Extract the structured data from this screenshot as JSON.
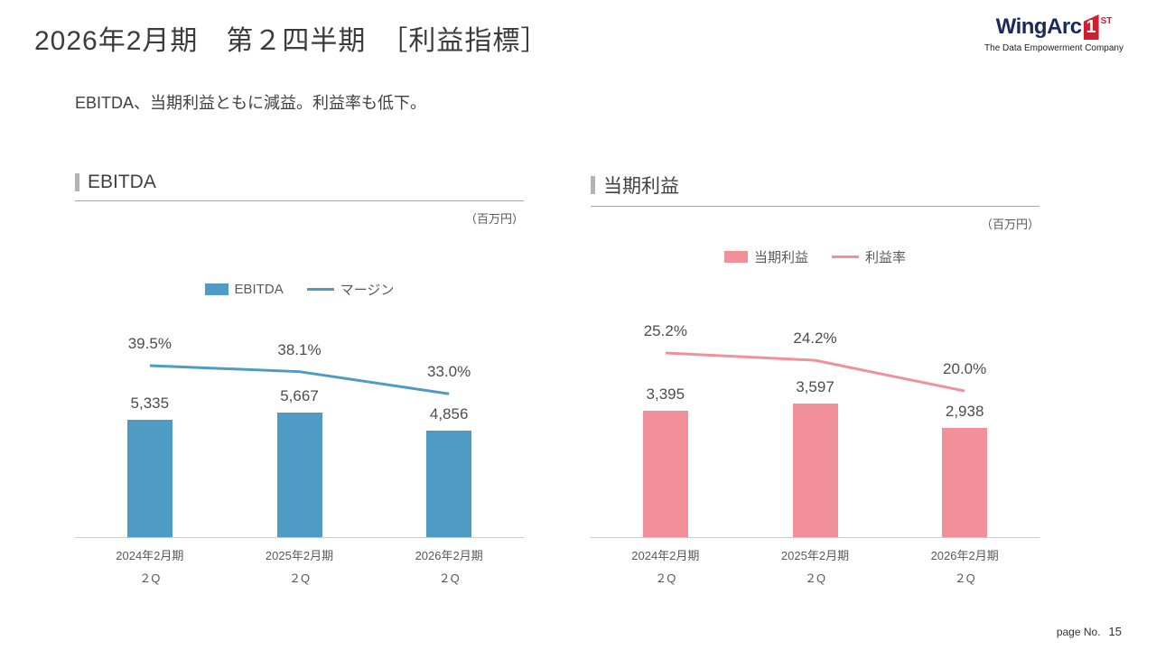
{
  "slide": {
    "title": "2026年2月期　第２四半期　［利益指標］",
    "subtitle": "EBITDA、当期利益ともに減益。利益率も低下。",
    "page_label": "page No.",
    "page_number": "15"
  },
  "logo": {
    "brand": "WingArc",
    "numeral": "1",
    "suffix": "ST",
    "tagline": "The Data Empowerment Company"
  },
  "chart_data": [
    {
      "type": "bar",
      "title": "EBITDA",
      "unit_label": "（百万円）",
      "categories": [
        "2024年2月期",
        "2025年2月期",
        "2026年2月期"
      ],
      "category_sub_label": "２Q",
      "series": [
        {
          "name": "EBITDA",
          "kind": "bar",
          "color": "#4e9bc4",
          "values": [
            5335,
            5667,
            4856
          ]
        },
        {
          "name": "マージン",
          "kind": "line",
          "color": "#4e9bc4",
          "values": [
            39.5,
            38.1,
            33.0
          ]
        }
      ],
      "bar_value_labels": [
        "5,335",
        "5,667",
        "4,856"
      ],
      "line_value_labels": [
        "39.5%",
        "38.1%",
        "33.0%"
      ],
      "ylim": [
        0,
        10500
      ],
      "line_ylim": [
        0,
        53
      ],
      "legend_position": "top-center",
      "grid": false
    },
    {
      "type": "bar",
      "title": "当期利益",
      "unit_label": "（百万円）",
      "categories": [
        "2024年2月期",
        "2025年2月期",
        "2026年2月期"
      ],
      "category_sub_label": "２Q",
      "series": [
        {
          "name": "当期利益",
          "kind": "bar",
          "color": "#f2909a",
          "values": [
            3395,
            3597,
            2938
          ]
        },
        {
          "name": "利益率",
          "kind": "line",
          "color": "#f2909a",
          "values": [
            25.2,
            24.2,
            20.0
          ]
        }
      ],
      "bar_value_labels": [
        "3,395",
        "3,597",
        "2,938"
      ],
      "line_value_labels": [
        "25.2%",
        "24.2%",
        "20.0%"
      ],
      "ylim": [
        0,
        6200
      ],
      "line_ylim": [
        0,
        31.5
      ],
      "legend_position": "top-center",
      "grid": false
    }
  ]
}
